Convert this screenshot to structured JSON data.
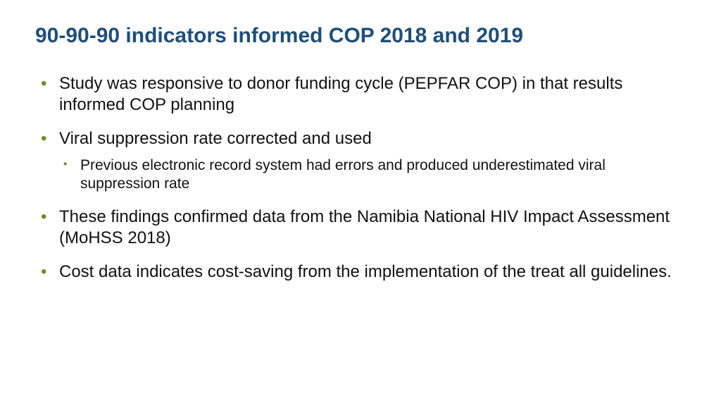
{
  "colors": {
    "title": "#1f4e79",
    "bullet": "#6b8e23",
    "text": "#111111",
    "background": "#ffffff"
  },
  "typography": {
    "title_fontsize": 30,
    "title_weight": "bold",
    "body_fontsize": 24,
    "sub_fontsize": 21,
    "font_family": "Arial"
  },
  "title": "90-90-90 indicators informed COP 2018 and 2019",
  "bullets": [
    {
      "text": "Study was responsive to donor funding cycle (PEPFAR COP) in that results informed COP planning",
      "children": []
    },
    {
      "text": "Viral suppression rate corrected and used",
      "children": [
        {
          "text": "Previous electronic record system had errors and produced underestimated viral suppression rate"
        }
      ]
    },
    {
      "text": "These findings confirmed data from the Namibia National HIV Impact Assessment (MoHSS 2018)",
      "children": []
    },
    {
      "text": "Cost data indicates cost-saving from the implementation of the treat all guidelines.",
      "children": []
    }
  ]
}
